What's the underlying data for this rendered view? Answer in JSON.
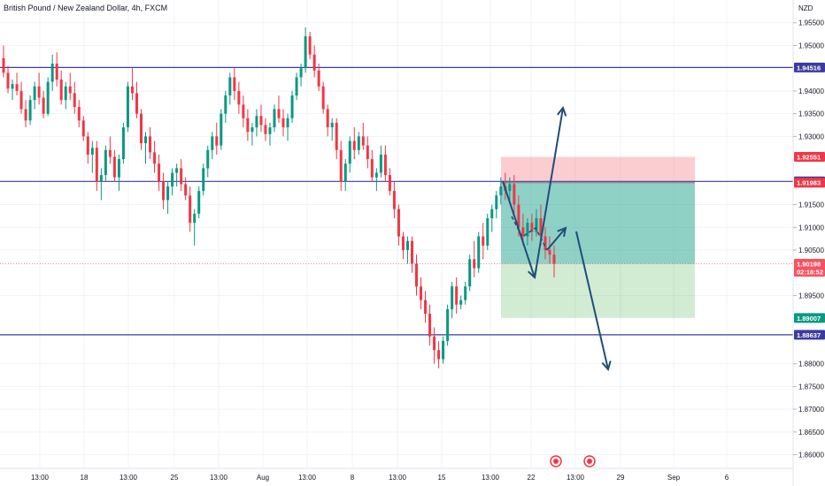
{
  "chart_data": {
    "type": "candlestick",
    "title": "British Pound / New Zealand Dollar, 4h, FXCM",
    "currency": "NZD",
    "y_range": [
      1.857,
      1.96
    ],
    "y_ticks": [
      "1.95500",
      "1.95000",
      "1.94000",
      "1.93500",
      "1.93000",
      "1.91500",
      "1.91000",
      "1.90500",
      "1.89500",
      "1.88000",
      "1.87500",
      "1.87000",
      "1.86500",
      "1.86000"
    ],
    "x_ticks": [
      "13:00",
      "18",
      "13:00",
      "25",
      "13:00",
      "Aug",
      "13:00",
      "8",
      "13:00",
      "15",
      "13:00",
      "22",
      "13:00",
      "29",
      "Sep",
      "6"
    ],
    "horizontal_lines": [
      {
        "value": 1.94516,
        "label": "1.94516",
        "color": "#3c3c9e"
      },
      {
        "value": 1.9201,
        "label": "1.92010",
        "color": "#3c3c9e"
      },
      {
        "value": 1.88637,
        "label": "1.88637",
        "color": "#3c3c9e"
      }
    ],
    "price_tags": [
      {
        "value": 1.92551,
        "label": "1.92551",
        "color": "#f23645"
      },
      {
        "value": 1.91983,
        "label": "1.91983",
        "color": "#f23645"
      },
      {
        "value": 1.90198,
        "label": "1.90198",
        "sublabel": "02:18:52",
        "color": "#f7525f"
      },
      {
        "value": 1.89007,
        "label": "1.89007",
        "color": "#089981"
      }
    ],
    "position": {
      "type": "short",
      "entry": 1.91983,
      "stop": 1.92551,
      "target": 1.89007
    },
    "current_price": 1.90198,
    "candles": [
      [
        1.9472,
        1.95,
        1.943,
        1.944
      ],
      [
        1.944,
        1.9455,
        1.9395,
        1.9405
      ],
      [
        1.9405,
        1.9425,
        1.938,
        1.9415
      ],
      [
        1.9415,
        1.944,
        1.939,
        1.94
      ],
      [
        1.94,
        1.942,
        1.935,
        1.936
      ],
      [
        1.936,
        1.938,
        1.932,
        1.9335
      ],
      [
        1.9335,
        1.939,
        1.9325,
        1.938
      ],
      [
        1.938,
        1.942,
        1.936,
        1.941
      ],
      [
        1.941,
        1.944,
        1.937,
        1.9385
      ],
      [
        1.9385,
        1.94,
        1.934,
        1.935
      ],
      [
        1.935,
        1.943,
        1.9345,
        1.942
      ],
      [
        1.942,
        1.948,
        1.94,
        1.946
      ],
      [
        1.946,
        1.9485,
        1.941,
        1.9425
      ],
      [
        1.9425,
        1.9445,
        1.937,
        1.938
      ],
      [
        1.938,
        1.942,
        1.936,
        1.941
      ],
      [
        1.941,
        1.944,
        1.938,
        1.9395
      ],
      [
        1.9395,
        1.942,
        1.935,
        1.9365
      ],
      [
        1.9365,
        1.938,
        1.932,
        1.9335
      ],
      [
        1.9335,
        1.9345,
        1.929,
        1.93
      ],
      [
        1.93,
        1.931,
        1.924,
        1.926
      ],
      [
        1.926,
        1.929,
        1.922,
        1.9275
      ],
      [
        1.9275,
        1.929,
        1.918,
        1.92
      ],
      [
        1.92,
        1.923,
        1.916,
        1.9215
      ],
      [
        1.9215,
        1.928,
        1.92,
        1.927
      ],
      [
        1.927,
        1.93,
        1.924,
        1.9255
      ],
      [
        1.9255,
        1.927,
        1.92,
        1.921
      ],
      [
        1.921,
        1.926,
        1.918,
        1.925
      ],
      [
        1.925,
        1.933,
        1.924,
        1.932
      ],
      [
        1.932,
        1.942,
        1.931,
        1.941
      ],
      [
        1.941,
        1.945,
        1.938,
        1.9395
      ],
      [
        1.9395,
        1.942,
        1.934,
        1.935
      ],
      [
        1.935,
        1.936,
        1.927,
        1.9285
      ],
      [
        1.9285,
        1.931,
        1.924,
        1.93
      ],
      [
        1.93,
        1.932,
        1.925,
        1.9265
      ],
      [
        1.9265,
        1.929,
        1.922,
        1.924
      ],
      [
        1.924,
        1.926,
        1.918,
        1.92
      ],
      [
        1.92,
        1.922,
        1.914,
        1.916
      ],
      [
        1.916,
        1.92,
        1.913,
        1.919
      ],
      [
        1.919,
        1.923,
        1.917,
        1.922
      ],
      [
        1.922,
        1.924,
        1.919,
        1.923
      ],
      [
        1.923,
        1.925,
        1.918,
        1.9195
      ],
      [
        1.9195,
        1.921,
        1.916,
        1.917
      ],
      [
        1.917,
        1.919,
        1.909,
        1.911
      ],
      [
        1.911,
        1.914,
        1.906,
        1.913
      ],
      [
        1.913,
        1.919,
        1.912,
        1.918
      ],
      [
        1.918,
        1.924,
        1.917,
        1.923
      ],
      [
        1.923,
        1.928,
        1.921,
        1.927
      ],
      [
        1.927,
        1.931,
        1.925,
        1.93
      ],
      [
        1.93,
        1.933,
        1.926,
        1.928
      ],
      [
        1.928,
        1.936,
        1.927,
        1.935
      ],
      [
        1.935,
        1.94,
        1.933,
        1.939
      ],
      [
        1.939,
        1.944,
        1.937,
        1.943
      ],
      [
        1.943,
        1.945,
        1.938,
        1.94
      ],
      [
        1.94,
        1.942,
        1.935,
        1.937
      ],
      [
        1.937,
        1.939,
        1.932,
        1.934
      ],
      [
        1.934,
        1.936,
        1.929,
        1.931
      ],
      [
        1.931,
        1.933,
        1.928,
        1.932
      ],
      [
        1.932,
        1.936,
        1.93,
        1.9345
      ],
      [
        1.9345,
        1.937,
        1.931,
        1.9325
      ],
      [
        1.9325,
        1.934,
        1.929,
        1.9305
      ],
      [
        1.9305,
        1.933,
        1.928,
        1.932
      ],
      [
        1.932,
        1.937,
        1.931,
        1.936
      ],
      [
        1.936,
        1.939,
        1.933,
        1.934
      ],
      [
        1.934,
        1.936,
        1.93,
        1.932
      ],
      [
        1.932,
        1.935,
        1.929,
        1.934
      ],
      [
        1.934,
        1.94,
        1.933,
        1.939
      ],
      [
        1.939,
        1.944,
        1.938,
        1.943
      ],
      [
        1.943,
        1.946,
        1.941,
        1.945
      ],
      [
        1.945,
        1.954,
        1.944,
        1.952
      ],
      [
        1.952,
        1.953,
        1.947,
        1.948
      ],
      [
        1.948,
        1.95,
        1.943,
        1.9445
      ],
      [
        1.9445,
        1.946,
        1.94,
        1.941
      ],
      [
        1.941,
        1.942,
        1.935,
        1.936
      ],
      [
        1.936,
        1.937,
        1.93,
        1.932
      ],
      [
        1.932,
        1.934,
        1.929,
        1.933
      ],
      [
        1.933,
        1.934,
        1.925,
        1.927
      ],
      [
        1.927,
        1.929,
        1.918,
        1.92
      ],
      [
        1.92,
        1.925,
        1.918,
        1.924
      ],
      [
        1.924,
        1.93,
        1.922,
        1.929
      ],
      [
        1.929,
        1.932,
        1.925,
        1.927
      ],
      [
        1.927,
        1.931,
        1.926,
        1.93
      ],
      [
        1.93,
        1.933,
        1.927,
        1.928
      ],
      [
        1.928,
        1.93,
        1.923,
        1.925
      ],
      [
        1.925,
        1.927,
        1.92,
        1.921
      ],
      [
        1.921,
        1.923,
        1.918,
        1.922
      ],
      [
        1.922,
        1.928,
        1.921,
        1.926
      ],
      [
        1.926,
        1.928,
        1.92,
        1.9215
      ],
      [
        1.9215,
        1.923,
        1.917,
        1.918
      ],
      [
        1.918,
        1.92,
        1.912,
        1.914
      ],
      [
        1.914,
        1.915,
        1.906,
        1.908
      ],
      [
        1.908,
        1.909,
        1.903,
        1.905
      ],
      [
        1.905,
        1.908,
        1.902,
        1.907
      ],
      [
        1.907,
        1.908,
        1.9,
        1.902
      ],
      [
        1.902,
        1.904,
        1.895,
        1.897
      ],
      [
        1.897,
        1.899,
        1.892,
        1.894
      ],
      [
        1.894,
        1.896,
        1.889,
        1.891
      ],
      [
        1.891,
        1.893,
        1.884,
        1.886
      ],
      [
        1.886,
        1.888,
        1.88,
        1.883
      ],
      [
        1.883,
        1.885,
        1.879,
        1.881
      ],
      [
        1.881,
        1.886,
        1.88,
        1.885
      ],
      [
        1.885,
        1.893,
        1.884,
        1.892
      ],
      [
        1.892,
        1.898,
        1.89,
        1.897
      ],
      [
        1.897,
        1.899,
        1.891,
        1.893
      ],
      [
        1.893,
        1.895,
        1.892,
        1.894
      ],
      [
        1.894,
        1.898,
        1.893,
        1.897
      ],
      [
        1.897,
        1.904,
        1.896,
        1.903
      ],
      [
        1.903,
        1.907,
        1.899,
        1.901
      ],
      [
        1.901,
        1.909,
        1.9,
        1.908
      ],
      [
        1.908,
        1.911,
        1.903,
        1.906
      ],
      [
        1.906,
        1.913,
        1.905,
        1.912
      ],
      [
        1.912,
        1.915,
        1.909,
        1.914
      ],
      [
        1.914,
        1.918,
        1.912,
        1.917
      ],
      [
        1.917,
        1.921,
        1.915,
        1.919
      ],
      [
        1.919,
        1.922,
        1.916,
        1.918
      ],
      [
        1.918,
        1.921,
        1.916,
        1.9195
      ],
      [
        1.9195,
        1.9215,
        1.913,
        1.915
      ],
      [
        1.915,
        1.917,
        1.908,
        1.91
      ],
      [
        1.91,
        1.913,
        1.906,
        1.908
      ],
      [
        1.908,
        1.912,
        1.906,
        1.911
      ],
      [
        1.911,
        1.913,
        1.907,
        1.909
      ],
      [
        1.909,
        1.914,
        1.908,
        1.912
      ],
      [
        1.912,
        1.915,
        1.906,
        1.908
      ],
      [
        1.908,
        1.91,
        1.903,
        1.905
      ],
      [
        1.905,
        1.908,
        1.902,
        1.904
      ],
      [
        1.904,
        1.906,
        1.899,
        1.902
      ]
    ]
  }
}
